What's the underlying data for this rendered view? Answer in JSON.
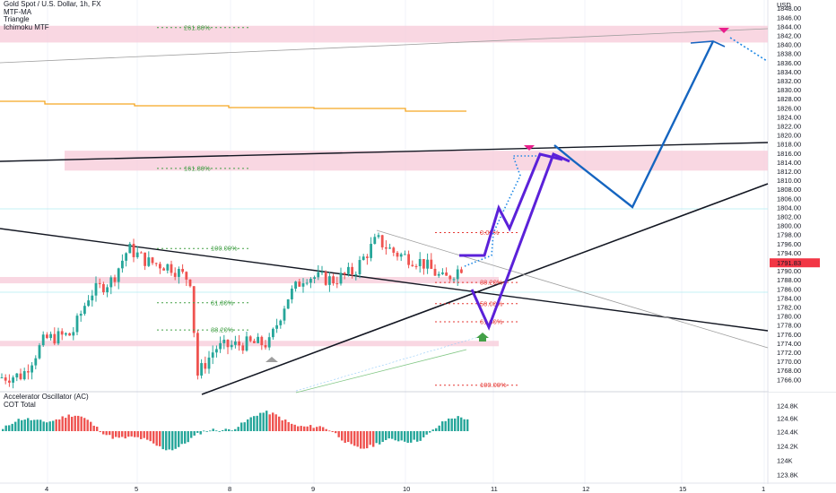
{
  "header": {
    "symbol_line": "Gold Spot / U.S. Dollar, 1h, FX",
    "indicators": [
      "MTF-MA",
      "Triangle",
      "Ichimoku MTF"
    ]
  },
  "lower_pane": {
    "indicators": [
      "Accelerator Oscillator (AC)",
      "COT Total"
    ]
  },
  "colors": {
    "bull": "#26a69a",
    "bear": "#ef5350",
    "zone_fill": "#f7c9d8",
    "projection_purple": "#5b21d9",
    "projection_blue": "#1565c0",
    "ma_orange": "#f5a623",
    "fib_green": "#43a047",
    "fib_red": "#e53935",
    "price_tag": "#f23645"
  },
  "chart_data": {
    "type": "candlestick",
    "price_axis": {
      "currency": "USD",
      "range": [
        1764,
        1850
      ],
      "ticks": [
        "1848.00",
        "1846.00",
        "1844.00",
        "1842.00",
        "1840.00",
        "1838.00",
        "1836.00",
        "1834.00",
        "1832.00",
        "1830.00",
        "1828.00",
        "1826.00",
        "1824.00",
        "1822.00",
        "1820.00",
        "1818.00",
        "1816.00",
        "1814.00",
        "1812.00",
        "1810.00",
        "1808.00",
        "1806.00",
        "1804.00",
        "1802.00",
        "1800.00",
        "1798.00",
        "1796.00",
        "1794.00",
        "1792.00",
        "1790.00",
        "1788.00",
        "1786.00",
        "1784.00",
        "1782.00",
        "1780.00",
        "1778.00",
        "1776.00",
        "1774.00",
        "1772.00",
        "1770.00",
        "1768.00",
        "1766.00"
      ],
      "last_price": "1791.83"
    },
    "time_axis": {
      "labels": [
        "4",
        "5",
        "8",
        "9",
        "10",
        "11",
        "12",
        "15",
        "1"
      ]
    },
    "fib_levels": [
      {
        "label": "261.80%",
        "price": 1843.8,
        "color": "green"
      },
      {
        "label": "161.80%",
        "price": 1812.7,
        "color": "green"
      },
      {
        "label": "100.00%",
        "price": 1795.0,
        "color": "green"
      },
      {
        "label": "61.80%",
        "price": 1783.0,
        "color": "green"
      },
      {
        "label": "38.20%",
        "price": 1777.0,
        "color": "green"
      },
      {
        "label": "0.00%",
        "price": 1798.5,
        "color": "red"
      },
      {
        "label": "38.20%",
        "price": 1787.5,
        "color": "red"
      },
      {
        "label": "50.00%",
        "price": 1782.8,
        "color": "red"
      },
      {
        "label": "61.80%",
        "price": 1778.8,
        "color": "red"
      },
      {
        "label": "100.00%",
        "price": 1764.8,
        "color": "red"
      }
    ],
    "zones": [
      {
        "from": 1840.5,
        "to": 1844.2
      },
      {
        "from": 1812.2,
        "to": 1816.6
      },
      {
        "from": 1787.3,
        "to": 1788.7
      },
      {
        "from": 1773.4,
        "to": 1774.6
      }
    ],
    "oscillator_axis": {
      "ticks": [
        "124.8K",
        "124.6K",
        "124.4K",
        "124.2K",
        "124K",
        "123.8K"
      ]
    }
  }
}
